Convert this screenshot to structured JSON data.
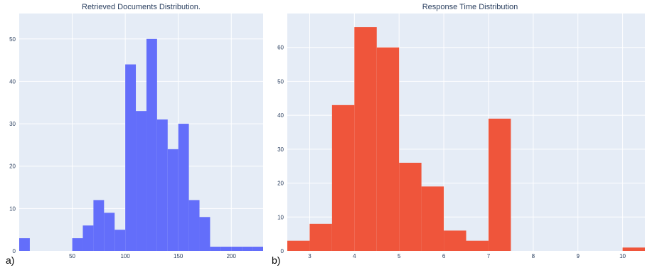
{
  "chart_data": [
    {
      "type": "bar",
      "title": "Retrieved Documents Distribution.",
      "panel_label": "a)",
      "color": "#636efa",
      "xlim": [
        0,
        230
      ],
      "ylim": [
        0,
        56
      ],
      "xticks": [
        50,
        100,
        150,
        200
      ],
      "yticks": [
        0,
        10,
        20,
        30,
        40,
        50
      ],
      "bin_width": 10,
      "bins_start": [
        0,
        10,
        20,
        30,
        40,
        50,
        60,
        70,
        80,
        90,
        100,
        110,
        120,
        130,
        140,
        150,
        160,
        170,
        180,
        190,
        200,
        210,
        220
      ],
      "values": [
        3,
        0,
        0,
        0,
        0,
        3,
        6,
        12,
        9,
        5,
        44,
        33,
        50,
        31,
        24,
        30,
        12,
        8,
        1,
        1,
        1,
        1,
        1
      ],
      "grid": true
    },
    {
      "type": "bar",
      "title": "Response Time Distribution",
      "panel_label": "b)",
      "color": "#ef553b",
      "xlim": [
        2.5,
        10.5
      ],
      "ylim": [
        0,
        70
      ],
      "xticks": [
        3,
        4,
        5,
        6,
        7,
        8,
        9,
        10
      ],
      "yticks": [
        0,
        10,
        20,
        30,
        40,
        50,
        60
      ],
      "bin_width": 0.5,
      "bins_start": [
        2.5,
        3.0,
        3.5,
        4.0,
        4.5,
        5.0,
        5.5,
        6.0,
        6.5,
        7.0,
        7.5,
        8.0,
        8.5,
        9.0,
        9.5,
        10.0
      ],
      "values": [
        3,
        8,
        43,
        66,
        60,
        26,
        19,
        6,
        3,
        39,
        0,
        0,
        0,
        0,
        0,
        1
      ],
      "grid": true
    }
  ]
}
